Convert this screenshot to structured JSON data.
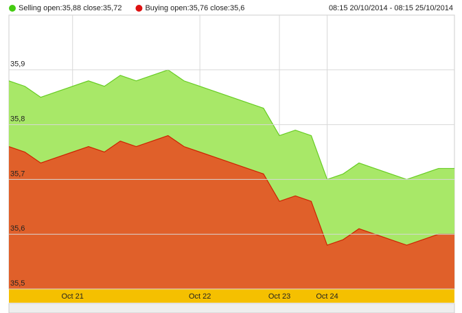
{
  "chart_data": {
    "type": "area",
    "subtitle": "08:15 20/10/2014 - 08:15 25/10/2014",
    "categories": [
      null,
      null,
      null,
      null,
      "Oct 21",
      null,
      null,
      null,
      null,
      null,
      null,
      null,
      "Oct 22",
      null,
      null,
      null,
      null,
      "Oct 23",
      null,
      null,
      "Oct 24",
      null,
      null,
      null,
      null,
      null,
      null,
      null,
      null
    ],
    "series": [
      {
        "name": "Selling open:35,88 close:35,72",
        "color": "#66cc22",
        "fill": "#a8e868",
        "values": [
          35.88,
          35.87,
          35.85,
          35.86,
          35.87,
          35.88,
          35.87,
          35.89,
          35.88,
          35.89,
          35.9,
          35.88,
          35.87,
          35.86,
          35.85,
          35.84,
          35.83,
          35.78,
          35.79,
          35.78,
          35.7,
          35.71,
          35.73,
          35.72,
          35.71,
          35.7,
          35.71,
          35.72,
          35.72
        ]
      },
      {
        "name": "Buying open:35,76 close:35,6",
        "color": "#cc2200",
        "fill": "#e0602a",
        "values": [
          35.76,
          35.75,
          35.73,
          35.74,
          35.75,
          35.76,
          35.75,
          35.77,
          35.76,
          35.77,
          35.78,
          35.76,
          35.75,
          35.74,
          35.73,
          35.72,
          35.71,
          35.66,
          35.67,
          35.66,
          35.58,
          35.59,
          35.61,
          35.6,
          35.59,
          35.58,
          35.59,
          35.6,
          35.6
        ]
      }
    ],
    "ylim": [
      35.5,
      36.0
    ],
    "yticks": [
      {
        "value": 35.5,
        "label": "35,5"
      },
      {
        "value": 35.6,
        "label": "35,6"
      },
      {
        "value": 35.7,
        "label": "35,7"
      },
      {
        "value": 35.8,
        "label": "35,8"
      },
      {
        "value": 35.9,
        "label": "35,9"
      }
    ],
    "grid": true
  }
}
